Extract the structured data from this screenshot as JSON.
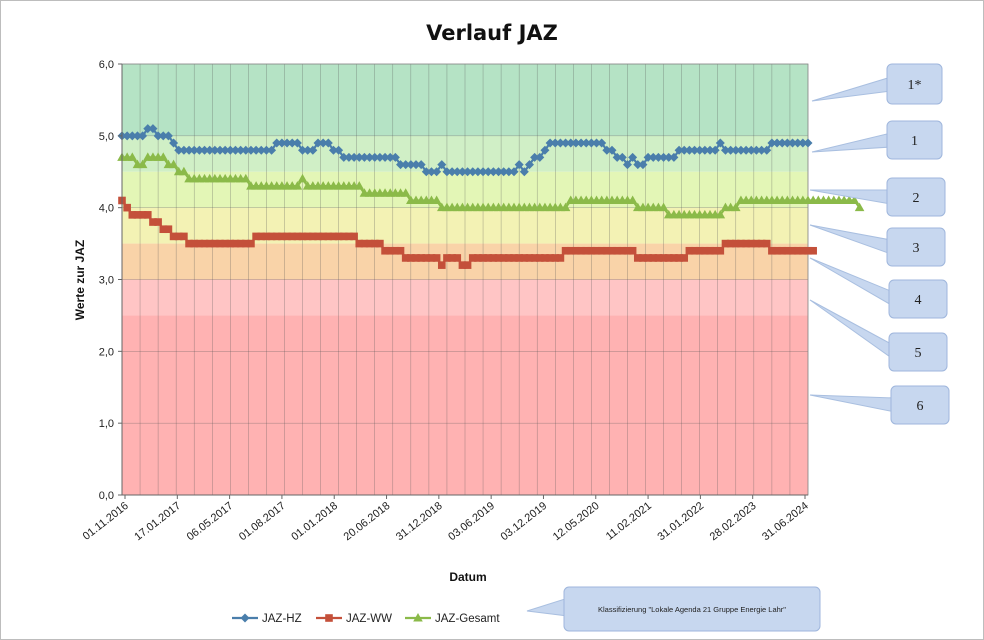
{
  "chart_data": {
    "type": "line",
    "title": "Verlauf JAZ",
    "xlabel": "Datum",
    "ylabel": "Werte zur JAZ",
    "ylim": [
      0,
      6
    ],
    "yticks": [
      "0,0",
      "1,0",
      "2,0",
      "3,0",
      "4,0",
      "5,0",
      "6,0"
    ],
    "x_tick_labels": [
      "01.11.2016",
      "17.01.2017",
      "06.05.2017",
      "01.08.2017",
      "01.01.2018",
      "20.06.2018",
      "31.12.2018",
      "03.06.2019",
      "03.12.2019",
      "12.05.2020",
      "11.02.2021",
      "31.01.2022",
      "28.02.2023",
      "31.06.2024"
    ],
    "grid": "vertical and horizontal",
    "legend_position": "bottom",
    "bands": [
      {
        "label": "1*",
        "from": 5.0,
        "to": 6.0,
        "color": "#b5e3c5"
      },
      {
        "label": "1",
        "from": 4.5,
        "to": 5.0,
        "color": "#d0efc6"
      },
      {
        "label": "2",
        "from": 4.0,
        "to": 4.5,
        "color": "#e3f6b6"
      },
      {
        "label": "3",
        "from": 3.5,
        "to": 4.0,
        "color": "#f3f2b4"
      },
      {
        "label": "4",
        "from": 3.0,
        "to": 3.5,
        "color": "#f9d3a8"
      },
      {
        "label": "5",
        "from": 2.5,
        "to": 3.0,
        "color": "#ffc5c5"
      },
      {
        "label": "6",
        "from": 0.0,
        "to": 2.5,
        "color": "#ffb2b2"
      }
    ],
    "series": [
      {
        "name": "JAZ-HZ",
        "color": "#4a7eab",
        "marker": "diamond",
        "values": [
          5.0,
          5.0,
          5.0,
          5.0,
          5.0,
          5.1,
          5.1,
          5.0,
          5.0,
          5.0,
          4.9,
          4.8,
          4.8,
          4.8,
          4.8,
          4.8,
          4.8,
          4.8,
          4.8,
          4.8,
          4.8,
          4.8,
          4.8,
          4.8,
          4.8,
          4.8,
          4.8,
          4.8,
          4.8,
          4.8,
          4.9,
          4.9,
          4.9,
          4.9,
          4.9,
          4.8,
          4.8,
          4.8,
          4.9,
          4.9,
          4.9,
          4.8,
          4.8,
          4.7,
          4.7,
          4.7,
          4.7,
          4.7,
          4.7,
          4.7,
          4.7,
          4.7,
          4.7,
          4.7,
          4.6,
          4.6,
          4.6,
          4.6,
          4.6,
          4.5,
          4.5,
          4.5,
          4.6,
          4.5,
          4.5,
          4.5,
          4.5,
          4.5,
          4.5,
          4.5,
          4.5,
          4.5,
          4.5,
          4.5,
          4.5,
          4.5,
          4.5,
          4.6,
          4.5,
          4.6,
          4.7,
          4.7,
          4.8,
          4.9,
          4.9,
          4.9,
          4.9,
          4.9,
          4.9,
          4.9,
          4.9,
          4.9,
          4.9,
          4.9,
          4.8,
          4.8,
          4.7,
          4.7,
          4.6,
          4.7,
          4.6,
          4.6,
          4.7,
          4.7,
          4.7,
          4.7,
          4.7,
          4.7,
          4.8,
          4.8,
          4.8,
          4.8,
          4.8,
          4.8,
          4.8,
          4.8,
          4.9,
          4.8,
          4.8,
          4.8,
          4.8,
          4.8,
          4.8,
          4.8,
          4.8,
          4.8,
          4.9,
          4.9,
          4.9,
          4.9,
          4.9,
          4.9,
          4.9,
          4.9
        ]
      },
      {
        "name": "JAZ-WW",
        "color": "#c4503a",
        "marker": "square",
        "values": [
          4.1,
          4.0,
          3.9,
          3.9,
          3.9,
          3.9,
          3.8,
          3.8,
          3.7,
          3.7,
          3.6,
          3.6,
          3.6,
          3.5,
          3.5,
          3.5,
          3.5,
          3.5,
          3.5,
          3.5,
          3.5,
          3.5,
          3.5,
          3.5,
          3.5,
          3.5,
          3.6,
          3.6,
          3.6,
          3.6,
          3.6,
          3.6,
          3.6,
          3.6,
          3.6,
          3.6,
          3.6,
          3.6,
          3.6,
          3.6,
          3.6,
          3.6,
          3.6,
          3.6,
          3.6,
          3.6,
          3.5,
          3.5,
          3.5,
          3.5,
          3.5,
          3.4,
          3.4,
          3.4,
          3.4,
          3.3,
          3.3,
          3.3,
          3.3,
          3.3,
          3.3,
          3.3,
          3.2,
          3.3,
          3.3,
          3.3,
          3.2,
          3.2,
          3.3,
          3.3,
          3.3,
          3.3,
          3.3,
          3.3,
          3.3,
          3.3,
          3.3,
          3.3,
          3.3,
          3.3,
          3.3,
          3.3,
          3.3,
          3.3,
          3.3,
          3.3,
          3.4,
          3.4,
          3.4,
          3.4,
          3.4,
          3.4,
          3.4,
          3.4,
          3.4,
          3.4,
          3.4,
          3.4,
          3.4,
          3.4,
          3.3,
          3.3,
          3.3,
          3.3,
          3.3,
          3.3,
          3.3,
          3.3,
          3.3,
          3.3,
          3.4,
          3.4,
          3.4,
          3.4,
          3.4,
          3.4,
          3.4,
          3.5,
          3.5,
          3.5,
          3.5,
          3.5,
          3.5,
          3.5,
          3.5,
          3.5,
          3.4,
          3.4,
          3.4,
          3.4,
          3.4,
          3.4,
          3.4,
          3.4,
          3.4
        ]
      },
      {
        "name": "JAZ-Gesamt",
        "color": "#8bba49",
        "marker": "triangle",
        "values": [
          4.7,
          4.7,
          4.7,
          4.6,
          4.6,
          4.7,
          4.7,
          4.7,
          4.7,
          4.6,
          4.6,
          4.5,
          4.5,
          4.4,
          4.4,
          4.4,
          4.4,
          4.4,
          4.4,
          4.4,
          4.4,
          4.4,
          4.4,
          4.4,
          4.4,
          4.3,
          4.3,
          4.3,
          4.3,
          4.3,
          4.3,
          4.3,
          4.3,
          4.3,
          4.3,
          4.4,
          4.3,
          4.3,
          4.3,
          4.3,
          4.3,
          4.3,
          4.3,
          4.3,
          4.3,
          4.3,
          4.3,
          4.2,
          4.2,
          4.2,
          4.2,
          4.2,
          4.2,
          4.2,
          4.2,
          4.2,
          4.1,
          4.1,
          4.1,
          4.1,
          4.1,
          4.1,
          4.0,
          4.0,
          4.0,
          4.0,
          4.0,
          4.0,
          4.0,
          4.0,
          4.0,
          4.0,
          4.0,
          4.0,
          4.0,
          4.0,
          4.0,
          4.0,
          4.0,
          4.0,
          4.0,
          4.0,
          4.0,
          4.0,
          4.0,
          4.0,
          4.0,
          4.1,
          4.1,
          4.1,
          4.1,
          4.1,
          4.1,
          4.1,
          4.1,
          4.1,
          4.1,
          4.1,
          4.1,
          4.1,
          4.0,
          4.0,
          4.0,
          4.0,
          4.0,
          4.0,
          3.9,
          3.9,
          3.9,
          3.9,
          3.9,
          3.9,
          3.9,
          3.9,
          3.9,
          3.9,
          3.9,
          4.0,
          4.0,
          4.0,
          4.1,
          4.1,
          4.1,
          4.1,
          4.1,
          4.1,
          4.1,
          4.1,
          4.1,
          4.1,
          4.1,
          4.1,
          4.1,
          4.1,
          4.1,
          4.1,
          4.1,
          4.1,
          4.1,
          4.1,
          4.1,
          4.1,
          4.1,
          4.0
        ]
      }
    ],
    "note": "Klassifizierung \"Lokale Agenda 21 Gruppe Energie Lahr\""
  }
}
